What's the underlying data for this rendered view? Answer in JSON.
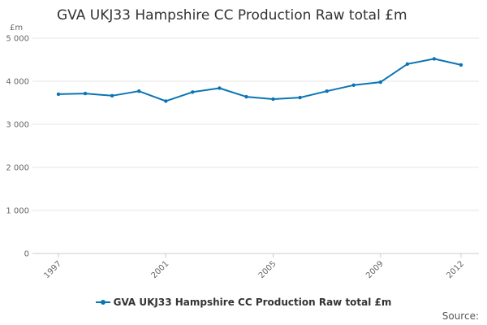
{
  "chart_data": {
    "type": "line",
    "title": "GVA UKJ33 Hampshire CC Production Raw total £m",
    "unit_label": "£m",
    "xlabel": "",
    "ylabel": "",
    "x": [
      1997,
      1998,
      1999,
      2000,
      2001,
      2002,
      2003,
      2004,
      2005,
      2006,
      2007,
      2008,
      2009,
      2010,
      2011,
      2012
    ],
    "x_tick_labels": [
      "1997",
      "2001",
      "2005",
      "2009",
      "2012"
    ],
    "x_tick_values": [
      1997,
      2001,
      2005,
      2009,
      2012
    ],
    "y_tick_labels": [
      "0",
      "1 000",
      "2 000",
      "3 000",
      "4 000",
      "5 000"
    ],
    "y_tick_values": [
      0,
      1000,
      2000,
      3000,
      4000,
      5000
    ],
    "ylim": [
      0,
      5000
    ],
    "xlim": [
      1997,
      2012
    ],
    "grid": "horizontal",
    "legend_position": "bottom",
    "series": [
      {
        "name": "GVA UKJ33 Hampshire CC Production Raw total £m",
        "color": "#0a75b4",
        "values": [
          3700,
          3715,
          3665,
          3770,
          3540,
          3750,
          3840,
          3640,
          3585,
          3620,
          3770,
          3910,
          3980,
          4400,
          4520,
          4380
        ]
      }
    ]
  },
  "footer": {
    "source_label": "Source:"
  }
}
